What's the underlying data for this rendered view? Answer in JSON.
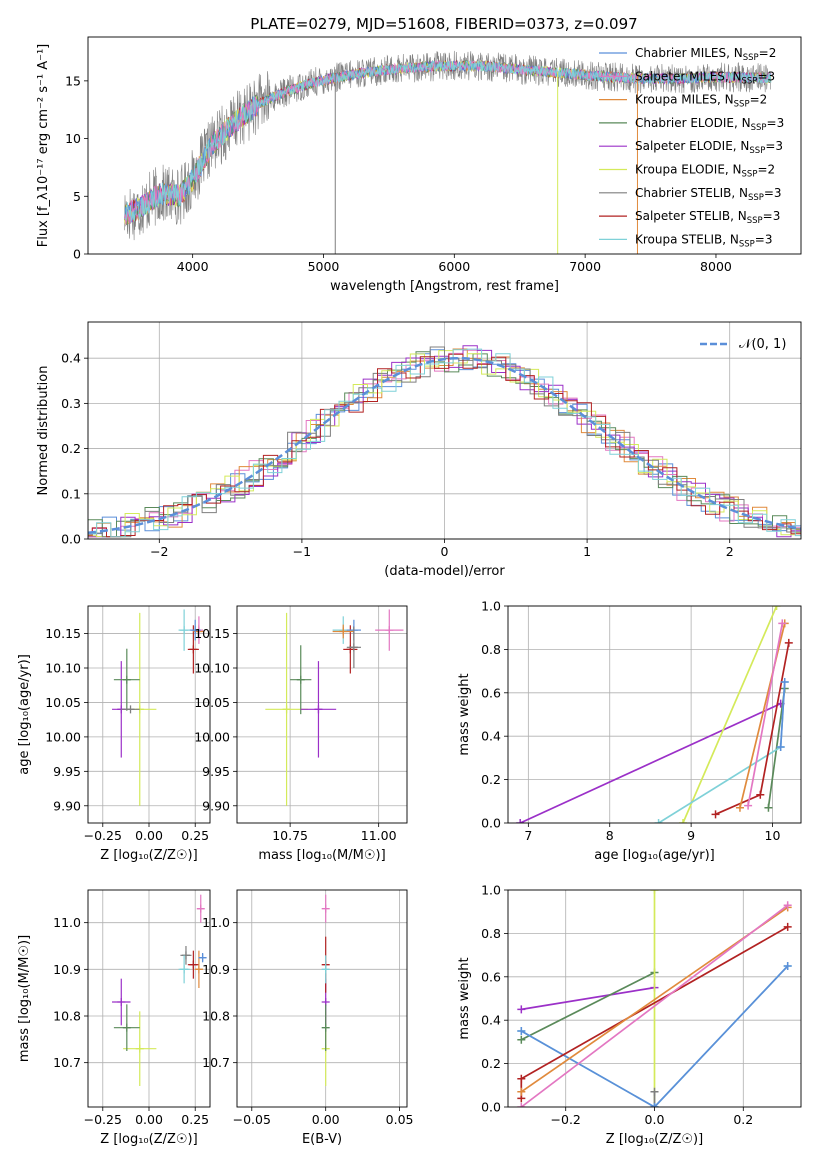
{
  "figure": {
    "title": "PLATE=0279, MJD=51608, FIBERID=0373, z=0.097"
  },
  "colors": {
    "chabrier_miles": "#5b8fd9",
    "salpeter_miles": "#e377c2",
    "kroupa_miles": "#e08a3c",
    "chabrier_elodie": "#5a8a5a",
    "salpeter_elodie": "#9b30c8",
    "kroupa_elodie": "#d4ea5a",
    "chabrier_stelib": "#7f7f7f",
    "salpeter_stelib": "#b22222",
    "kroupa_stelib": "#7fd1d8",
    "gauss": "#5b8fd9",
    "grid": "#b0b0b0"
  },
  "chart_data": [
    {
      "id": "spectrum",
      "type": "line",
      "title": "",
      "xlabel": "wavelength [Angstrom, rest frame]",
      "ylabel": "Flux [f_λ10⁻¹⁷ erg cm⁻² s⁻¹ A⁻¹]",
      "xlim": [
        3200,
        8650
      ],
      "ylim": [
        0,
        18.8
      ],
      "xticks": [
        4000,
        5000,
        6000,
        7000,
        8000
      ],
      "yticks": [
        0,
        5,
        10,
        15
      ],
      "grid": false,
      "legend_position": "right",
      "continuum_knots": [
        [
          3480,
          3.4
        ],
        [
          3600,
          4.0
        ],
        [
          3750,
          5.2
        ],
        [
          3900,
          5.0
        ],
        [
          4000,
          6.5
        ],
        [
          4150,
          9.5
        ],
        [
          4300,
          11.2
        ],
        [
          4500,
          13.0
        ],
        [
          4700,
          14.0
        ],
        [
          4900,
          14.8
        ],
        [
          5100,
          15.3
        ],
        [
          5300,
          15.7
        ],
        [
          5600,
          16.1
        ],
        [
          5900,
          16.3
        ],
        [
          6200,
          16.3
        ],
        [
          6500,
          16.0
        ],
        [
          6800,
          15.7
        ],
        [
          7100,
          15.4
        ],
        [
          7400,
          15.2
        ],
        [
          7700,
          15.2
        ],
        [
          8000,
          15.3
        ],
        [
          8300,
          15.3
        ],
        [
          8420,
          15.2
        ]
      ],
      "legend": [
        {
          "label": "Chabrier MILES, N",
          "sub": "SSP",
          "tail": "=2",
          "color_key": "chabrier_miles"
        },
        {
          "label": "Salpeter MILES, N",
          "sub": "SSP",
          "tail": "=3",
          "color_key": "salpeter_miles"
        },
        {
          "label": "Kroupa MILES, N",
          "sub": "SSP",
          "tail": "=2",
          "color_key": "kroupa_miles"
        },
        {
          "label": "Chabrier ELODIE, N",
          "sub": "SSP",
          "tail": "=3",
          "color_key": "chabrier_elodie"
        },
        {
          "label": "Salpeter ELODIE, N",
          "sub": "SSP",
          "tail": "=3",
          "color_key": "salpeter_elodie"
        },
        {
          "label": "Kroupa ELODIE, N",
          "sub": "SSP",
          "tail": "=2",
          "color_key": "kroupa_elodie"
        },
        {
          "label": "Chabrier STELIB, N",
          "sub": "SSP",
          "tail": "=3",
          "color_key": "chabrier_stelib"
        },
        {
          "label": "Salpeter STELIB, N",
          "sub": "SSP",
          "tail": "=3",
          "color_key": "salpeter_stelib"
        },
        {
          "label": "Kroupa STELIB, N",
          "sub": "SSP",
          "tail": "=3",
          "color_key": "kroupa_stelib"
        }
      ],
      "spike_lines": [
        {
          "x": 5090,
          "y_low": 0,
          "y_high": 16.0,
          "color_key": "chabrier_stelib"
        },
        {
          "x": 6790,
          "y_low": 0,
          "y_high": 15.8,
          "color_key": "kroupa_elodie"
        },
        {
          "x": 7400,
          "y_low": 0,
          "y_high": 15.5,
          "color_key": "kroupa_miles"
        }
      ]
    },
    {
      "id": "residuals",
      "type": "histogram",
      "xlabel": "(data-model)/error",
      "ylabel": "Normed distribution",
      "xlim": [
        -2.5,
        2.5
      ],
      "ylim": [
        0,
        0.48
      ],
      "xticks": [
        -2,
        -1,
        0,
        1,
        2
      ],
      "yticks": [
        0.0,
        0.1,
        0.2,
        0.3,
        0.4
      ],
      "grid": true,
      "legend": {
        "label": "𝒩(0, 1)",
        "position": "top-right",
        "color_key": "gauss"
      },
      "bin_width": 0.1,
      "gaussian": {
        "mu": 0.1,
        "sigma": 1.0,
        "peak": 0.4
      }
    },
    {
      "id": "age_vs_Z",
      "type": "errorbar",
      "xlabel": "Z [log₁₀(Z/Z☉)]",
      "ylabel": "age [log₁₀(age/yr)]",
      "xlim": [
        -0.33,
        0.33
      ],
      "ylim": [
        9.875,
        10.19
      ],
      "xticks": [
        -0.25,
        0.0,
        0.25
      ],
      "yticks": [
        9.9,
        9.95,
        10.0,
        10.05,
        10.1,
        10.15
      ],
      "grid": true,
      "points": [
        {
          "key": "kroupa_elodie",
          "x": -0.05,
          "y": 10.04,
          "xerr": 0.09,
          "yerr": 0.14
        },
        {
          "key": "salpeter_elodie",
          "x": -0.15,
          "y": 10.04,
          "xerr": 0.05,
          "yerr": 0.07
        },
        {
          "key": "chabrier_elodie",
          "x": -0.12,
          "y": 10.083,
          "xerr": 0.07,
          "yerr": 0.045
        },
        {
          "key": "chabrier_stelib",
          "x": -0.1,
          "y": 10.04,
          "xerr": 0.05,
          "yerr": 0.0
        },
        {
          "key": "kroupa_stelib",
          "x": 0.19,
          "y": 10.155,
          "xerr": 0.03,
          "yerr": 0.03
        },
        {
          "key": "salpeter_stelib",
          "x": 0.24,
          "y": 10.127,
          "xerr": 0.03,
          "yerr": 0.035
        },
        {
          "key": "kroupa_miles",
          "x": 0.27,
          "y": 10.153,
          "xerr": 0.03,
          "yerr": 0.01
        },
        {
          "key": "salpeter_miles",
          "x": 0.27,
          "y": 10.155,
          "xerr": 0.02,
          "yerr": 0.02
        },
        {
          "key": "chabrier_miles",
          "x": 0.25,
          "y": 10.155,
          "xerr": 0.03,
          "yerr": 0.015
        }
      ]
    },
    {
      "id": "age_vs_mass",
      "type": "errorbar",
      "xlabel": "mass [log₁₀(M/M☉)]",
      "ylabel": "",
      "xlim": [
        10.6,
        11.08
      ],
      "ylim": [
        9.875,
        10.19
      ],
      "xticks": [
        10.75,
        11.0
      ],
      "yticks": [
        9.9,
        9.95,
        10.0,
        10.05,
        10.1,
        10.15
      ],
      "grid": true,
      "points": [
        {
          "key": "kroupa_elodie",
          "x": 10.74,
          "y": 10.04,
          "xerr": 0.06,
          "yerr": 0.14
        },
        {
          "key": "chabrier_elodie",
          "x": 10.78,
          "y": 10.083,
          "xerr": 0.03,
          "yerr": 0.05
        },
        {
          "key": "salpeter_elodie",
          "x": 10.83,
          "y": 10.04,
          "xerr": 0.05,
          "yerr": 0.07
        },
        {
          "key": "salpeter_stelib",
          "x": 10.92,
          "y": 10.127,
          "xerr": 0.02,
          "yerr": 0.035
        },
        {
          "key": "kroupa_stelib",
          "x": 10.9,
          "y": 10.155,
          "xerr": 0.03,
          "yerr": 0.02
        },
        {
          "key": "salpeter_miles",
          "x": 11.03,
          "y": 10.155,
          "xerr": 0.04,
          "yerr": 0.03
        },
        {
          "key": "chabrier_miles",
          "x": 10.93,
          "y": 10.155,
          "xerr": 0.02,
          "yerr": 0.015
        },
        {
          "key": "kroupa_miles",
          "x": 10.9,
          "y": 10.153,
          "xerr": 0.03,
          "yerr": 0.01
        },
        {
          "key": "chabrier_stelib",
          "x": 10.93,
          "y": 10.13,
          "xerr": 0.02,
          "yerr": 0.03
        }
      ]
    },
    {
      "id": "mass_weight_vs_age",
      "type": "line",
      "xlabel": "age [log₁₀(age/yr)]",
      "ylabel": "mass weight",
      "xlim": [
        6.75,
        10.35
      ],
      "ylim": [
        0,
        1.0
      ],
      "xticks": [
        7,
        8,
        9,
        10
      ],
      "yticks": [
        0.0,
        0.2,
        0.4,
        0.6,
        0.8,
        1.0
      ],
      "grid": true,
      "series": [
        {
          "key": "salpeter_elodie",
          "points": [
            [
              6.9,
              0.0
            ],
            [
              10.1,
              0.55
            ]
          ]
        },
        {
          "key": "kroupa_elodie",
          "points": [
            [
              8.9,
              0.0
            ],
            [
              10.05,
              1.0
            ]
          ]
        },
        {
          "key": "chabrier_elodie",
          "points": [
            [
              9.95,
              0.07
            ],
            [
              10.15,
              0.62
            ]
          ]
        },
        {
          "key": "kroupa_stelib",
          "points": [
            [
              8.6,
              0.0
            ],
            [
              10.1,
              0.35
            ],
            [
              10.15,
              0.65
            ]
          ]
        },
        {
          "key": "salpeter_stelib",
          "points": [
            [
              9.3,
              0.04
            ],
            [
              9.85,
              0.13
            ],
            [
              10.2,
              0.83
            ]
          ]
        },
        {
          "key": "kroupa_miles",
          "points": [
            [
              9.6,
              0.07
            ],
            [
              10.15,
              0.92
            ]
          ]
        },
        {
          "key": "salpeter_miles",
          "points": [
            [
              9.7,
              0.08
            ],
            [
              10.12,
              0.92
            ]
          ]
        },
        {
          "key": "chabrier_miles",
          "points": [
            [
              10.1,
              0.35
            ],
            [
              10.15,
              0.65
            ]
          ]
        }
      ]
    },
    {
      "id": "mass_vs_Z",
      "type": "errorbar",
      "xlabel": "Z [log₁₀(Z/Z☉)]",
      "ylabel": "mass [log₁₀(M/M☉)]",
      "xlim": [
        -0.33,
        0.33
      ],
      "ylim": [
        10.605,
        11.07
      ],
      "xticks": [
        -0.25,
        0.0,
        0.25
      ],
      "yticks": [
        10.7,
        10.8,
        10.9,
        11.0
      ],
      "grid": true,
      "points": [
        {
          "key": "kroupa_elodie",
          "x": -0.05,
          "y": 10.73,
          "xerr": 0.09,
          "yerr": 0.08
        },
        {
          "key": "salpeter_elodie",
          "x": -0.15,
          "y": 10.83,
          "xerr": 0.05,
          "yerr": 0.05
        },
        {
          "key": "chabrier_elodie",
          "x": -0.12,
          "y": 10.775,
          "xerr": 0.07,
          "yerr": 0.05
        },
        {
          "key": "chabrier_stelib",
          "x": 0.2,
          "y": 10.93,
          "xerr": 0.03,
          "yerr": 0.02
        },
        {
          "key": "kroupa_stelib",
          "x": 0.19,
          "y": 10.9,
          "xerr": 0.03,
          "yerr": 0.03
        },
        {
          "key": "salpeter_stelib",
          "x": 0.24,
          "y": 10.91,
          "xerr": 0.03,
          "yerr": 0.03
        },
        {
          "key": "kroupa_miles",
          "x": 0.27,
          "y": 10.9,
          "xerr": 0.02,
          "yerr": 0.04
        },
        {
          "key": "salpeter_miles",
          "x": 0.28,
          "y": 11.03,
          "xerr": 0.02,
          "yerr": 0.03
        },
        {
          "key": "chabrier_miles",
          "x": 0.29,
          "y": 10.925,
          "xerr": 0.02,
          "yerr": 0.01
        }
      ]
    },
    {
      "id": "mass_vs_ebv",
      "type": "errorbar",
      "xlabel": "E(B-V)",
      "ylabel": "",
      "xlim": [
        -0.06,
        0.055
      ],
      "ylim": [
        10.605,
        11.07
      ],
      "xticks": [
        -0.05,
        0.0,
        0.05
      ],
      "yticks": [
        10.7,
        10.8,
        10.9,
        11.0
      ],
      "grid": true,
      "points": [
        {
          "key": "kroupa_elodie",
          "x": 0.0,
          "y": 10.73,
          "xerr": 0.0,
          "yerr": 0.08
        },
        {
          "key": "salpeter_elodie",
          "x": 0.0,
          "y": 10.83,
          "xerr": 0.0,
          "yerr": 0.05
        },
        {
          "key": "salpeter_miles",
          "x": 0.0,
          "y": 11.03,
          "xerr": 0.0,
          "yerr": 0.03
        },
        {
          "key": "salpeter_stelib",
          "x": 0.0,
          "y": 10.91,
          "xerr": 0.0,
          "yerr": 0.06
        },
        {
          "key": "kroupa_stelib",
          "x": 0.0,
          "y": 10.9,
          "xerr": 0.0,
          "yerr": 0.03
        },
        {
          "key": "chabrier_elodie",
          "x": 0.0,
          "y": 10.775,
          "xerr": 0.0,
          "yerr": 0.05
        }
      ]
    },
    {
      "id": "mass_weight_vs_Z",
      "type": "line",
      "xlabel": "Z [log₁₀(Z/Z☉)]",
      "ylabel": "mass weight",
      "xlim": [
        -0.33,
        0.33
      ],
      "ylim": [
        0,
        1.0
      ],
      "xticks": [
        -0.2,
        0.0,
        0.2
      ],
      "yticks": [
        0.0,
        0.2,
        0.4,
        0.6,
        0.8,
        1.0
      ],
      "grid": true,
      "series": [
        {
          "key": "salpeter_elodie",
          "points": [
            [
              -0.3,
              0.45
            ],
            [
              0.0,
              0.55
            ]
          ]
        },
        {
          "key": "chabrier_elodie",
          "points": [
            [
              -0.3,
              0.31
            ],
            [
              0.0,
              0.62
            ]
          ]
        },
        {
          "key": "kroupa_elodie",
          "points": [
            [
              0.0,
              0.0
            ],
            [
              0.0,
              1.0
            ]
          ]
        },
        {
          "key": "chabrier_stelib",
          "points": [
            [
              0.0,
              0.07
            ],
            [
              0.0,
              0.0
            ]
          ]
        },
        {
          "key": "kroupa_stelib",
          "points": [
            [
              -0.3,
              0.35
            ],
            [
              0.0,
              0.0
            ],
            [
              0.3,
              0.65
            ]
          ]
        },
        {
          "key": "chabrier_miles",
          "points": [
            [
              -0.3,
              0.35
            ],
            [
              0.0,
              0.0
            ],
            [
              0.3,
              0.65
            ]
          ]
        },
        {
          "key": "salpeter_stelib",
          "points": [
            [
              -0.3,
              0.04
            ],
            [
              -0.3,
              0.13
            ],
            [
              0.3,
              0.83
            ]
          ]
        },
        {
          "key": "kroupa_miles",
          "points": [
            [
              -0.3,
              0.07
            ],
            [
              0.3,
              0.92
            ]
          ]
        },
        {
          "key": "salpeter_miles",
          "points": [
            [
              -0.3,
              0.0
            ],
            [
              0.3,
              0.93
            ]
          ]
        }
      ]
    }
  ]
}
